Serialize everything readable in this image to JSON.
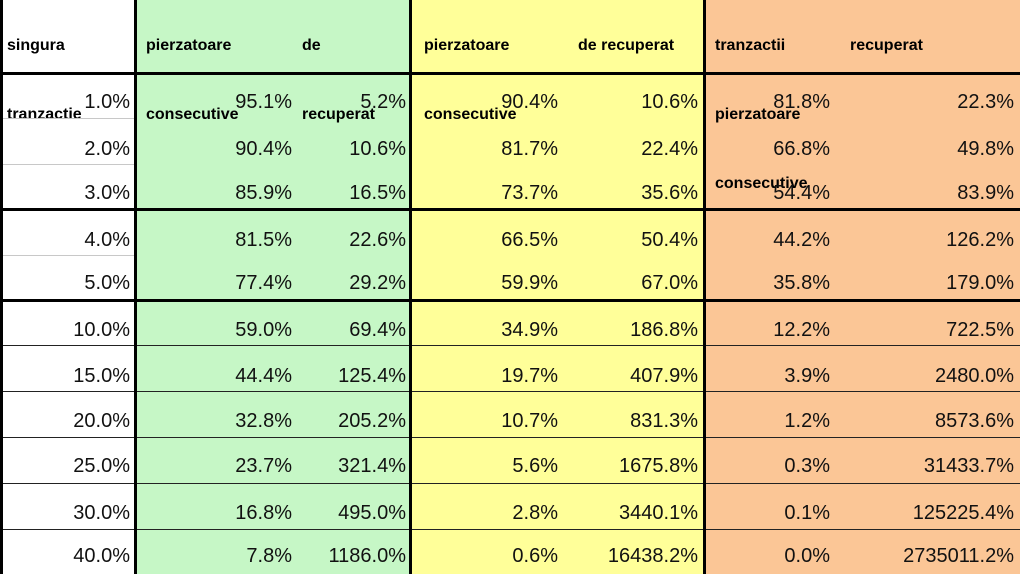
{
  "headers": {
    "col0": [
      "singura",
      "tranzactie"
    ],
    "g1": [
      "pierzatoare",
      "consecutive"
    ],
    "g2": [
      "de",
      "recuperat"
    ],
    "y1": [
      "pierzatoare",
      "consecutive"
    ],
    "y2": [
      "de recuperat"
    ],
    "o1": [
      "tranzactii",
      "pierzatoare",
      "consecutive"
    ],
    "o2": [
      "recuperat"
    ]
  },
  "rows": [
    [
      "1.0%",
      "95.1%",
      "5.2%",
      "90.4%",
      "10.6%",
      "81.8%",
      "22.3%"
    ],
    [
      "2.0%",
      "90.4%",
      "10.6%",
      "81.7%",
      "22.4%",
      "66.8%",
      "49.8%"
    ],
    [
      "3.0%",
      "85.9%",
      "16.5%",
      "73.7%",
      "35.6%",
      "54.4%",
      "83.9%"
    ],
    [
      "4.0%",
      "81.5%",
      "22.6%",
      "66.5%",
      "50.4%",
      "44.2%",
      "126.2%"
    ],
    [
      "5.0%",
      "77.4%",
      "29.2%",
      "59.9%",
      "67.0%",
      "35.8%",
      "179.0%"
    ],
    [
      "10.0%",
      "59.0%",
      "69.4%",
      "34.9%",
      "186.8%",
      "12.2%",
      "722.5%"
    ],
    [
      "15.0%",
      "44.4%",
      "125.4%",
      "19.7%",
      "407.9%",
      "3.9%",
      "2480.0%"
    ],
    [
      "20.0%",
      "32.8%",
      "205.2%",
      "10.7%",
      "831.3%",
      "1.2%",
      "8573.6%"
    ],
    [
      "25.0%",
      "23.7%",
      "321.4%",
      "5.6%",
      "1675.8%",
      "0.3%",
      "31433.7%"
    ],
    [
      "30.0%",
      "16.8%",
      "495.0%",
      "2.8%",
      "3440.1%",
      "0.1%",
      "125225.4%"
    ],
    [
      "40.0%",
      "7.8%",
      "1186.0%",
      "0.6%",
      "16438.2%",
      "0.0%",
      "2735011.2%"
    ]
  ],
  "colors": {
    "green": "#c6f7c6",
    "yellow": "#ffff99",
    "orange": "#fbc696"
  }
}
